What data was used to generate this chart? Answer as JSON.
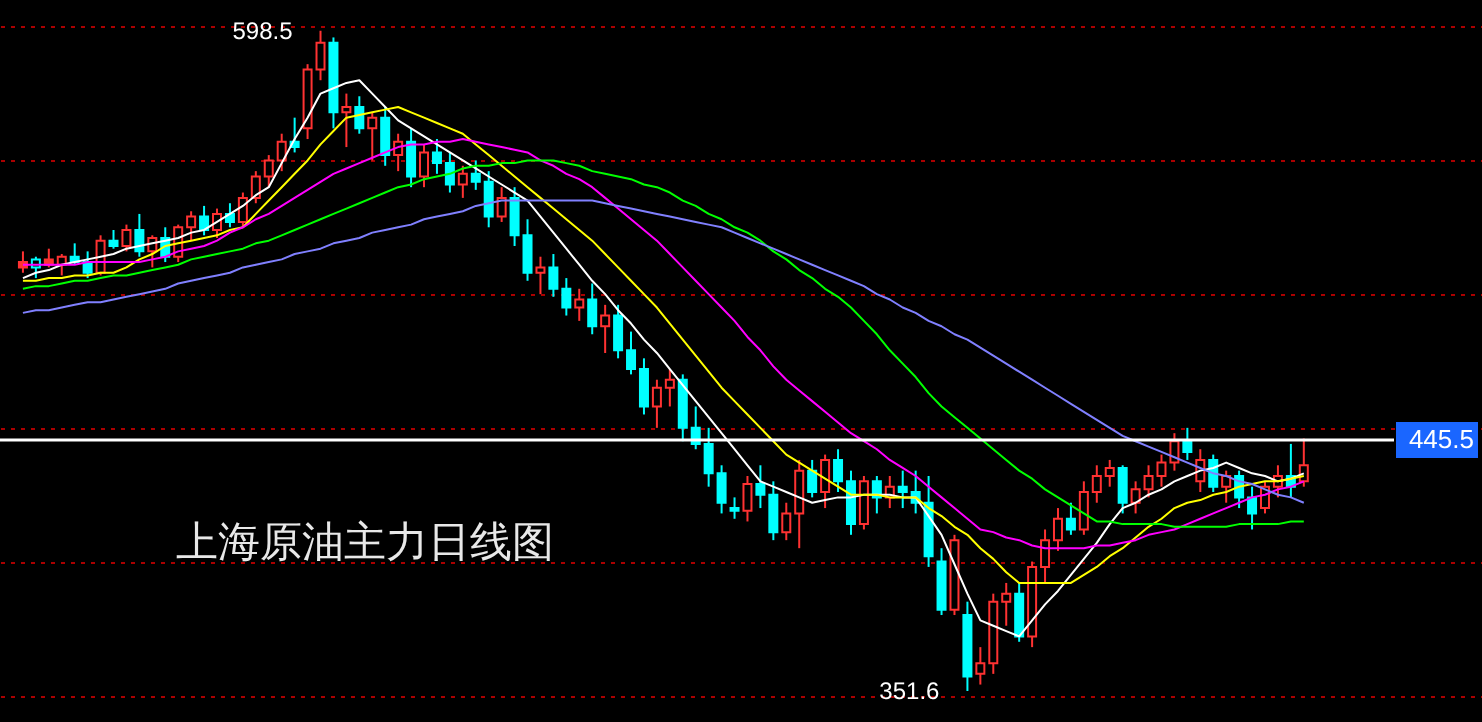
{
  "chart_data": {
    "type": "candlestick",
    "categories": [
      null,
      null,
      null,
      null,
      null,
      null,
      null,
      null,
      null,
      null,
      null,
      null,
      null,
      null,
      null,
      null,
      null,
      null,
      null,
      null,
      null,
      null,
      null,
      null,
      null,
      null,
      null,
      null,
      null,
      null,
      null,
      null,
      null,
      null,
      null,
      null,
      null,
      null,
      null,
      null,
      null,
      null,
      null,
      null,
      null,
      null,
      null,
      null,
      null,
      null,
      null,
      null,
      null,
      null,
      null,
      null,
      null,
      null,
      null,
      null,
      null,
      null,
      null,
      null,
      null,
      null,
      null,
      null,
      null,
      null,
      null,
      null,
      null,
      null,
      null,
      null,
      null,
      null,
      null,
      null,
      null,
      null,
      null,
      null,
      null,
      null,
      null,
      null,
      null,
      null,
      null,
      null,
      null,
      null,
      null,
      null,
      null,
      null,
      null,
      null
    ],
    "ohlc": [
      [
        512,
        516,
        508,
        510
      ],
      [
        510,
        514,
        506,
        513
      ],
      [
        513,
        517,
        510,
        511
      ],
      [
        511,
        515,
        507,
        514
      ],
      [
        514,
        519,
        511,
        512
      ],
      [
        512,
        516,
        506,
        508
      ],
      [
        508,
        522,
        507,
        520
      ],
      [
        520,
        524,
        517,
        518
      ],
      [
        518,
        526,
        516,
        524
      ],
      [
        524,
        530,
        514,
        516
      ],
      [
        516,
        522,
        510,
        521
      ],
      [
        521,
        525,
        512,
        514
      ],
      [
        514,
        526,
        512,
        525
      ],
      [
        525,
        531,
        520,
        529
      ],
      [
        529,
        533,
        522,
        524
      ],
      [
        524,
        532,
        521,
        530
      ],
      [
        530,
        534,
        525,
        527
      ],
      [
        527,
        538,
        525,
        536
      ],
      [
        536,
        546,
        534,
        544
      ],
      [
        544,
        552,
        540,
        550
      ],
      [
        550,
        560,
        546,
        557
      ],
      [
        557,
        566,
        553,
        555
      ],
      [
        562,
        586,
        558,
        584
      ],
      [
        584,
        598.5,
        580,
        594
      ],
      [
        594,
        596,
        562,
        568
      ],
      [
        568,
        575,
        555,
        570
      ],
      [
        570,
        574,
        560,
        562
      ],
      [
        562,
        568,
        550,
        566
      ],
      [
        566,
        570,
        548,
        552
      ],
      [
        552,
        560,
        546,
        557
      ],
      [
        557,
        562,
        540,
        544
      ],
      [
        544,
        556,
        540,
        553
      ],
      [
        553,
        558,
        545,
        549
      ],
      [
        549,
        553,
        538,
        541
      ],
      [
        541,
        548,
        536,
        545
      ],
      [
        545,
        550,
        539,
        542
      ],
      [
        542,
        546,
        525,
        529
      ],
      [
        529,
        540,
        527,
        536
      ],
      [
        536,
        540,
        518,
        522
      ],
      [
        522,
        528,
        505,
        508
      ],
      [
        508,
        514,
        500,
        510
      ],
      [
        510,
        515,
        499,
        502
      ],
      [
        502,
        506,
        492,
        495
      ],
      [
        495,
        502,
        490,
        498
      ],
      [
        498,
        504,
        485,
        488
      ],
      [
        488,
        496,
        478,
        492
      ],
      [
        492,
        496,
        476,
        479
      ],
      [
        479,
        486,
        470,
        472
      ],
      [
        472,
        476,
        455,
        458
      ],
      [
        458,
        468,
        450,
        465
      ],
      [
        465,
        472,
        458,
        468
      ],
      [
        468,
        470,
        445,
        450
      ],
      [
        450,
        458,
        442,
        444
      ],
      [
        444,
        450,
        428,
        433
      ],
      [
        433,
        436,
        418,
        422
      ],
      [
        420,
        424,
        416,
        419
      ],
      [
        419,
        432,
        415,
        429
      ],
      [
        429,
        436,
        420,
        425
      ],
      [
        425,
        430,
        408,
        411
      ],
      [
        411,
        422,
        408,
        418
      ],
      [
        418,
        438,
        405,
        434
      ],
      [
        434,
        438,
        424,
        426
      ],
      [
        426,
        440,
        420,
        438
      ],
      [
        438,
        442,
        426,
        430
      ],
      [
        430,
        434,
        410,
        414
      ],
      [
        414,
        432,
        412,
        430
      ],
      [
        430,
        432,
        418,
        424
      ],
      [
        424,
        432,
        420,
        428
      ],
      [
        428,
        434,
        420,
        426
      ],
      [
        426,
        434,
        418,
        422
      ],
      [
        422,
        432,
        398,
        402
      ],
      [
        400,
        405,
        380,
        382
      ],
      [
        382,
        410,
        380,
        408
      ],
      [
        380,
        385,
        351.6,
        357
      ],
      [
        358,
        368,
        354,
        362
      ],
      [
        362,
        388,
        358,
        385
      ],
      [
        385,
        392,
        376,
        388
      ],
      [
        388,
        392,
        370,
        372
      ],
      [
        372,
        400,
        368,
        398
      ],
      [
        398,
        412,
        392,
        408
      ],
      [
        408,
        420,
        404,
        416
      ],
      [
        416,
        422,
        410,
        412
      ],
      [
        412,
        430,
        410,
        426
      ],
      [
        426,
        436,
        422,
        432
      ],
      [
        432,
        438,
        428,
        435
      ],
      [
        435,
        436,
        418,
        422
      ],
      [
        422,
        430,
        418,
        427
      ],
      [
        427,
        436,
        424,
        432
      ],
      [
        432,
        440,
        428,
        437
      ],
      [
        437,
        448,
        434,
        445
      ],
      [
        445,
        450,
        438,
        441
      ],
      [
        430,
        442,
        426,
        438
      ],
      [
        438,
        440,
        426,
        428
      ],
      [
        428,
        434,
        422,
        432
      ],
      [
        432,
        434,
        420,
        424
      ],
      [
        424,
        428,
        412,
        418
      ],
      [
        420,
        430,
        418,
        428
      ],
      [
        428,
        436,
        424,
        432
      ],
      [
        432,
        444,
        424,
        428
      ],
      [
        430,
        446,
        428,
        436
      ]
    ],
    "colors": [
      "#ff3232",
      "#00ffff",
      "#ff3232",
      "#ff3232",
      "#00ffff",
      "#00ffff",
      "#ff3232",
      "#00ffff",
      "#ff3232",
      "#00ffff",
      "#ff3232",
      "#00ffff",
      "#ff3232",
      "#ff3232",
      "#00ffff",
      "#ff3232",
      "#00ffff",
      "#ff3232",
      "#ff3232",
      "#ff3232",
      "#ff3232",
      "#00ffff",
      "#ff3232",
      "#ff3232",
      "#00ffff",
      "#ff3232",
      "#00ffff",
      "#ff3232",
      "#00ffff",
      "#ff3232",
      "#00ffff",
      "#ff3232",
      "#00ffff",
      "#00ffff",
      "#ff3232",
      "#00ffff",
      "#00ffff",
      "#ff3232",
      "#00ffff",
      "#00ffff",
      "#ff3232",
      "#00ffff",
      "#00ffff",
      "#ff3232",
      "#00ffff",
      "#ff3232",
      "#00ffff",
      "#00ffff",
      "#00ffff",
      "#ff3232",
      "#ff3232",
      "#00ffff",
      "#00ffff",
      "#00ffff",
      "#00ffff",
      "#00ffff",
      "#ff3232",
      "#00ffff",
      "#00ffff",
      "#ff3232",
      "#ff3232",
      "#00ffff",
      "#ff3232",
      "#00ffff",
      "#00ffff",
      "#ff3232",
      "#00ffff",
      "#ff3232",
      "#00ffff",
      "#00ffff",
      "#00ffff",
      "#00ffff",
      "#ff3232",
      "#00ffff",
      "#ff3232",
      "#ff3232",
      "#ff3232",
      "#00ffff",
      "#ff3232",
      "#ff3232",
      "#ff3232",
      "#00ffff",
      "#ff3232",
      "#ff3232",
      "#ff3232",
      "#00ffff",
      "#ff3232",
      "#ff3232",
      "#ff3232",
      "#ff3232",
      "#00ffff",
      "#ff3232",
      "#00ffff",
      "#ff3232",
      "#00ffff",
      "#00ffff",
      "#ff3232",
      "#ff3232",
      "#00ffff",
      "#ff3232"
    ],
    "series": [
      {
        "type": "line",
        "color": "#ffffff",
        "values": [
          506,
          508,
          509,
          511,
          512,
          513,
          514,
          515,
          517,
          518,
          519,
          520,
          521,
          523,
          524,
          527,
          530,
          533,
          537,
          540,
          549,
          558,
          566,
          575,
          577,
          579,
          580,
          575,
          570,
          565,
          562,
          559,
          556,
          553,
          550,
          547,
          544,
          541,
          538,
          535,
          529,
          523,
          517,
          511,
          505,
          500,
          494,
          489,
          483,
          478,
          472,
          466,
          460,
          454,
          448,
          442,
          436,
          430,
          428,
          426,
          424,
          422,
          423,
          424,
          424,
          425,
          425,
          425,
          424,
          424,
          417,
          410,
          399,
          388,
          378,
          376,
          374,
          372,
          378,
          384,
          389,
          395,
          401,
          407,
          414,
          420,
          422,
          425,
          427,
          430,
          432,
          434,
          435,
          437,
          435,
          433,
          432,
          430,
          431,
          433
        ]
      },
      {
        "type": "line",
        "color": "#ffff00",
        "values": [
          505,
          505,
          506,
          506,
          507,
          507,
          508,
          508,
          510,
          513,
          515,
          518,
          519,
          520,
          521,
          522,
          524,
          525,
          530,
          535,
          540,
          545,
          550,
          556,
          561,
          566,
          567,
          568,
          569,
          570,
          568,
          566,
          564,
          562,
          560,
          556,
          552,
          548,
          544,
          540,
          536,
          532,
          528,
          524,
          520,
          515,
          510,
          505,
          500,
          495,
          489,
          483,
          477,
          471,
          465,
          460,
          455,
          450,
          445,
          440,
          437,
          434,
          431,
          428,
          425,
          425,
          425,
          424,
          424,
          424,
          420,
          417,
          413,
          410,
          405,
          401,
          396,
          392,
          392,
          392,
          392,
          392,
          395,
          398,
          402,
          405,
          409,
          413,
          416,
          420,
          422,
          423,
          425,
          426,
          428,
          429,
          430,
          430,
          431,
          432
        ]
      },
      {
        "type": "line",
        "color": "#ff00ff",
        "values": [
          511,
          511,
          511,
          511,
          511,
          512,
          512,
          512,
          512,
          512,
          513,
          514,
          516,
          517,
          518,
          520,
          523,
          525,
          528,
          530,
          533,
          536,
          539,
          542,
          545,
          547,
          549,
          551,
          553,
          555,
          556,
          556,
          557,
          557,
          558,
          557,
          556,
          555,
          554,
          553,
          550,
          548,
          545,
          543,
          540,
          536,
          532,
          528,
          524,
          520,
          515,
          510,
          505,
          500,
          495,
          490,
          484,
          479,
          473,
          468,
          464,
          460,
          456,
          452,
          448,
          445,
          442,
          438,
          435,
          432,
          428,
          424,
          420,
          416,
          412,
          411,
          409,
          408,
          406,
          405,
          405,
          405,
          405,
          406,
          406,
          407,
          408,
          410,
          411,
          412,
          414,
          416,
          418,
          420,
          422,
          424,
          425,
          427,
          428,
          430
        ]
      },
      {
        "type": "line",
        "color": "#00ff00",
        "values": [
          502,
          503,
          503,
          504,
          505,
          505,
          506,
          507,
          507,
          508,
          509,
          510,
          511,
          513,
          514,
          515,
          516,
          517,
          519,
          520,
          522,
          524,
          526,
          528,
          530,
          532,
          534,
          536,
          538,
          540,
          541,
          543,
          544,
          545,
          547,
          548,
          548,
          549,
          549,
          550,
          550,
          550,
          549,
          548,
          546,
          545,
          544,
          543,
          541,
          540,
          538,
          535,
          533,
          530,
          528,
          525,
          523,
          520,
          516,
          513,
          509,
          506,
          502,
          499,
          495,
          490,
          485,
          479,
          474,
          469,
          463,
          458,
          454,
          450,
          446,
          442,
          438,
          434,
          431,
          427,
          424,
          421,
          418,
          415,
          415,
          414,
          414,
          414,
          414,
          413,
          413,
          413,
          413,
          413,
          414,
          414,
          414,
          414,
          415,
          415
        ]
      },
      {
        "type": "line",
        "color": "#8080ff",
        "values": [
          493,
          494,
          494,
          495,
          496,
          497,
          497,
          498,
          499,
          500,
          501,
          502,
          504,
          505,
          506,
          507,
          508,
          510,
          511,
          512,
          513,
          515,
          516,
          517,
          519,
          520,
          521,
          523,
          524,
          525,
          526,
          528,
          529,
          530,
          531,
          533,
          534,
          535,
          535,
          535,
          535,
          535,
          535,
          535,
          535,
          534,
          533,
          532,
          531,
          530,
          529,
          528,
          527,
          526,
          525,
          523,
          521,
          519,
          517,
          515,
          513,
          511,
          509,
          507,
          505,
          503,
          500,
          498,
          495,
          493,
          490,
          488,
          485,
          483,
          480,
          477,
          474,
          471,
          468,
          465,
          462,
          459,
          456,
          453,
          450,
          447,
          445,
          443,
          441,
          439,
          437,
          435,
          433,
          432,
          430,
          429,
          427,
          425,
          424,
          422
        ]
      }
    ],
    "ylim": [
      340,
      610
    ],
    "yticks": [
      {
        "value": 600,
        "label": null
      },
      {
        "value": 550,
        "label": null
      },
      {
        "value": 500,
        "label": null
      },
      {
        "value": 450,
        "label": null
      },
      {
        "value": 400,
        "label": null
      },
      {
        "value": 350,
        "label": null
      }
    ],
    "grid": "y",
    "tick_labels": false,
    "marker": "none",
    "line_style": "solid",
    "ref_lines": [
      {
        "axis": "y",
        "value": 445.5,
        "label": "445.5",
        "color": "#ffffff"
      }
    ],
    "annotations": [
      "598.5",
      "351.6",
      "上海原油主力日线图"
    ]
  }
}
